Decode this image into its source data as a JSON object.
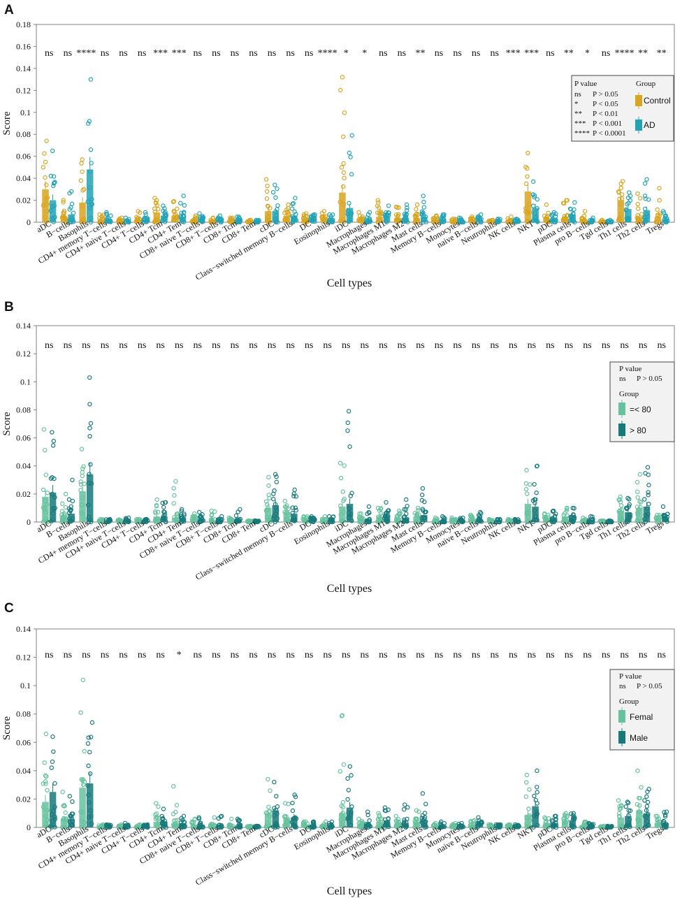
{
  "cell_types": [
    "aDC",
    "B−cells",
    "Basophils",
    "CD4+ memory T−cells",
    "CD4+ naive T−cells",
    "CD4+ T−cells",
    "CD4+ Tcm",
    "CD4+ Tem",
    "CD8+ naive T−cells",
    "CD8+ T−cells",
    "CD8+ Tcm",
    "CD8+ Tem",
    "cDC",
    "Class−switched memory B−cells",
    "DC",
    "Eosinophils",
    "iDC",
    "Macrophages",
    "Macrophages M1",
    "Macrophages M2",
    "Mast cells",
    "Memory B−cells",
    "Monocytes",
    "naive B−cells",
    "Neutrophils",
    "NK cells",
    "NKT",
    "pDC",
    "Plasma cells",
    "pro B−cells",
    "Tgd cells",
    "Th1 cells",
    "Th2 cells",
    "Tregs"
  ],
  "colors": {
    "control": "#d8a520",
    "ad": "#22a3b5",
    "light": "#66c29e",
    "dark": "#17797a",
    "frame": "#808080"
  },
  "chart_data": [
    {
      "panel": "A",
      "type": "bar",
      "xlabel": "Cell types",
      "ylabel": "Score",
      "ylim": [
        0,
        0.18
      ],
      "yticks": [
        0,
        0.02,
        0.04,
        0.06,
        0.08,
        0.1,
        0.12,
        0.14,
        0.16,
        0.18
      ],
      "ytick_labels": [
        "0",
        "0.02",
        "0.04",
        "0.06",
        "0.08",
        "0.1",
        "0.12",
        "0.14",
        "0.16",
        "0.18"
      ],
      "significance": [
        "ns",
        "ns",
        "****",
        "ns",
        "ns",
        "ns",
        "***",
        "***",
        "ns",
        "ns",
        "ns",
        "ns",
        "ns",
        "ns",
        "ns",
        "****",
        "*",
        "*",
        "ns",
        "ns",
        "**",
        "ns",
        "ns",
        "ns",
        "ns",
        "***",
        "***",
        "ns",
        "**",
        "*",
        "ns",
        "****",
        "**",
        "**"
      ],
      "legend": {
        "title": "P value",
        "rows": [
          [
            "ns",
            "P > 0.05"
          ],
          [
            "*",
            "P < 0.05"
          ],
          [
            "**",
            "P < 0.01"
          ],
          [
            "***",
            "P < 0.001"
          ],
          [
            "****",
            "P < 0.0001"
          ]
        ],
        "group_title": "Group",
        "groups": [
          "Control",
          "AD"
        ]
      },
      "series": [
        {
          "name": "Control",
          "values": [
            0.03,
            0.005,
            0.018,
            0.002,
            0.001,
            0.002,
            0.009,
            0.006,
            0.002,
            0.001,
            0.002,
            0.0005,
            0.01,
            0.006,
            0.003,
            0.003,
            0.027,
            0.003,
            0.005,
            0.004,
            0.004,
            0.002,
            0.001,
            0.002,
            0.001,
            0.001,
            0.028,
            0.003,
            0.005,
            0.002,
            0.0005,
            0.02,
            0.005,
            0.005
          ],
          "max": [
            0.074,
            0.02,
            0.057,
            0.007,
            0.004,
            0.01,
            0.022,
            0.019,
            0.006,
            0.004,
            0.004,
            0.002,
            0.039,
            0.016,
            0.008,
            0.01,
            0.132,
            0.009,
            0.02,
            0.014,
            0.016,
            0.006,
            0.003,
            0.005,
            0.002,
            0.005,
            0.063,
            0.016,
            0.02,
            0.01,
            0.002,
            0.035,
            0.026,
            0.031
          ]
        },
        {
          "name": "AD",
          "values": [
            0.02,
            0.007,
            0.048,
            0.003,
            0.001,
            0.002,
            0.006,
            0.005,
            0.003,
            0.002,
            0.002,
            0.0005,
            0.01,
            0.006,
            0.003,
            0.002,
            0.013,
            0.002,
            0.005,
            0.004,
            0.005,
            0.002,
            0.001,
            0.002,
            0.001,
            0.001,
            0.013,
            0.004,
            0.007,
            0.001,
            0.0005,
            0.012,
            0.011,
            0.003
          ],
          "max": [
            0.065,
            0.028,
            0.13,
            0.009,
            0.004,
            0.009,
            0.015,
            0.024,
            0.008,
            0.006,
            0.005,
            0.002,
            0.034,
            0.022,
            0.007,
            0.007,
            0.079,
            0.009,
            0.015,
            0.016,
            0.024,
            0.007,
            0.004,
            0.007,
            0.003,
            0.003,
            0.037,
            0.009,
            0.018,
            0.004,
            0.002,
            0.027,
            0.039,
            0.01
          ]
        }
      ]
    },
    {
      "panel": "B",
      "type": "bar",
      "xlabel": "Cell types",
      "ylabel": "Score",
      "ylim": [
        0,
        0.14
      ],
      "yticks": [
        0,
        0.02,
        0.04,
        0.06,
        0.08,
        0.1,
        0.12,
        0.14
      ],
      "ytick_labels": [
        "0",
        "0.02",
        "0.04",
        "0.06",
        "0.08",
        "0.1",
        "0.12",
        "0.14"
      ],
      "significance": [
        "ns",
        "ns",
        "ns",
        "ns",
        "ns",
        "ns",
        "ns",
        "ns",
        "ns",
        "ns",
        "ns",
        "ns",
        "ns",
        "ns",
        "ns",
        "ns",
        "ns",
        "ns",
        "ns",
        "ns",
        "ns",
        "ns",
        "ns",
        "ns",
        "ns",
        "ns",
        "ns",
        "ns",
        "ns",
        "ns",
        "ns",
        "ns",
        "ns",
        "ns"
      ],
      "legend": {
        "title": "P value",
        "rows": [
          [
            "ns",
            "P > 0.05"
          ]
        ],
        "group_title": "Group",
        "groups": [
          "=< 80",
          "> 80"
        ]
      },
      "series": [
        {
          "name": "=< 80",
          "values": [
            0.018,
            0.005,
            0.022,
            0.001,
            0.001,
            0.001,
            0.004,
            0.003,
            0.002,
            0.001,
            0.001,
            0.0005,
            0.01,
            0.007,
            0.002,
            0.001,
            0.011,
            0.002,
            0.004,
            0.003,
            0.004,
            0.001,
            0.001,
            0.002,
            0.001,
            0.001,
            0.013,
            0.003,
            0.004,
            0.001,
            0.0005,
            0.008,
            0.01,
            0.003
          ],
          "max": [
            0.066,
            0.02,
            0.052,
            0.002,
            0.001,
            0.002,
            0.016,
            0.029,
            0.006,
            0.008,
            0.003,
            0.001,
            0.032,
            0.015,
            0.004,
            0.004,
            0.042,
            0.006,
            0.01,
            0.008,
            0.01,
            0.003,
            0.003,
            0.005,
            0.002,
            0.002,
            0.037,
            0.006,
            0.01,
            0.003,
            0.001,
            0.018,
            0.034,
            0.005
          ]
        },
        {
          "name": "> 80",
          "values": [
            0.021,
            0.006,
            0.034,
            0.001,
            0.001,
            0.001,
            0.004,
            0.003,
            0.002,
            0.001,
            0.001,
            0.0005,
            0.012,
            0.006,
            0.002,
            0.001,
            0.013,
            0.002,
            0.005,
            0.003,
            0.005,
            0.001,
            0.001,
            0.002,
            0.001,
            0.001,
            0.011,
            0.003,
            0.005,
            0.001,
            0.0005,
            0.007,
            0.011,
            0.003
          ],
          "max": [
            0.064,
            0.03,
            0.103,
            0.002,
            0.003,
            0.002,
            0.014,
            0.009,
            0.007,
            0.004,
            0.009,
            0.001,
            0.034,
            0.023,
            0.004,
            0.004,
            0.079,
            0.011,
            0.014,
            0.016,
            0.024,
            0.004,
            0.003,
            0.007,
            0.002,
            0.002,
            0.04,
            0.008,
            0.01,
            0.004,
            0.001,
            0.017,
            0.039,
            0.011
          ]
        }
      ]
    },
    {
      "panel": "C",
      "type": "bar",
      "xlabel": "Cell types",
      "ylabel": "Score",
      "ylim": [
        0,
        0.14
      ],
      "yticks": [
        0,
        0.02,
        0.04,
        0.06,
        0.08,
        0.1,
        0.12,
        0.14
      ],
      "ytick_labels": [
        "0",
        "0.02",
        "0.04",
        "0.06",
        "0.08",
        "0.1",
        "0.12",
        "0.14"
      ],
      "significance": [
        "ns",
        "ns",
        "ns",
        "ns",
        "ns",
        "ns",
        "ns",
        "*",
        "ns",
        "ns",
        "ns",
        "ns",
        "ns",
        "ns",
        "ns",
        "ns",
        "ns",
        "ns",
        "ns",
        "ns",
        "ns",
        "ns",
        "ns",
        "ns",
        "ns",
        "ns",
        "ns",
        "ns",
        "ns",
        "ns",
        "ns",
        "ns",
        "ns",
        "ns"
      ],
      "legend": {
        "title": "P value",
        "rows": [
          [
            "ns",
            "P > 0.05"
          ]
        ],
        "group_title": "Group",
        "groups": [
          "Femal",
          "Male"
        ]
      },
      "series": [
        {
          "name": "Femal",
          "values": [
            0.018,
            0.006,
            0.028,
            0.001,
            0.001,
            0.001,
            0.004,
            0.003,
            0.002,
            0.001,
            0.001,
            0.0005,
            0.01,
            0.007,
            0.002,
            0.001,
            0.01,
            0.002,
            0.004,
            0.003,
            0.004,
            0.001,
            0.001,
            0.002,
            0.001,
            0.001,
            0.009,
            0.003,
            0.004,
            0.001,
            0.0005,
            0.007,
            0.012,
            0.003
          ],
          "max": [
            0.066,
            0.025,
            0.104,
            0.002,
            0.001,
            0.002,
            0.017,
            0.029,
            0.006,
            0.007,
            0.006,
            0.001,
            0.034,
            0.017,
            0.004,
            0.004,
            0.079,
            0.006,
            0.01,
            0.008,
            0.012,
            0.003,
            0.003,
            0.005,
            0.002,
            0.002,
            0.037,
            0.007,
            0.01,
            0.004,
            0.001,
            0.019,
            0.04,
            0.008
          ]
        },
        {
          "name": "Male",
          "values": [
            0.025,
            0.006,
            0.031,
            0.001,
            0.001,
            0.001,
            0.004,
            0.003,
            0.002,
            0.001,
            0.001,
            0.0005,
            0.012,
            0.007,
            0.002,
            0.001,
            0.014,
            0.002,
            0.005,
            0.003,
            0.005,
            0.001,
            0.001,
            0.002,
            0.001,
            0.001,
            0.015,
            0.003,
            0.005,
            0.001,
            0.0005,
            0.008,
            0.01,
            0.003
          ],
          "max": [
            0.064,
            0.022,
            0.074,
            0.002,
            0.003,
            0.002,
            0.013,
            0.008,
            0.007,
            0.008,
            0.006,
            0.001,
            0.032,
            0.023,
            0.004,
            0.004,
            0.043,
            0.011,
            0.014,
            0.016,
            0.024,
            0.004,
            0.003,
            0.007,
            0.002,
            0.002,
            0.04,
            0.008,
            0.01,
            0.003,
            0.001,
            0.018,
            0.027,
            0.011
          ]
        }
      ]
    }
  ]
}
